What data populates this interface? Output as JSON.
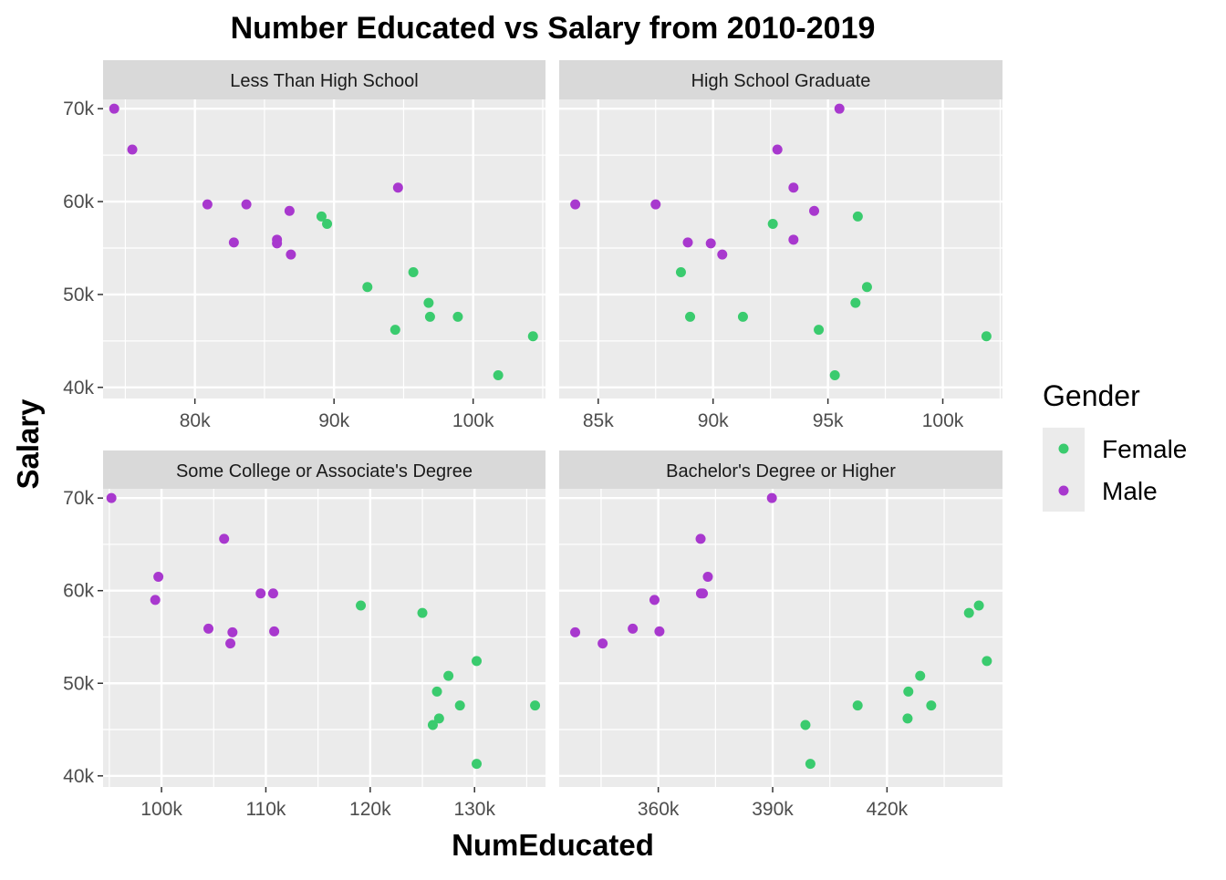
{
  "chart_data": {
    "type": "scatter",
    "title": "Number Educated vs Salary from 2010-2019",
    "xlabel": "NumEducated",
    "ylabel": "Salary",
    "grid": true,
    "legend": {
      "title": "Gender",
      "position": "right",
      "entries": [
        {
          "name": "Female",
          "color": "#3ACB6E"
        },
        {
          "name": "Male",
          "color": "#A838CE"
        }
      ]
    },
    "y_ticks": [
      {
        "value": 40000,
        "label": "40k"
      },
      {
        "value": 50000,
        "label": "50k"
      },
      {
        "value": 60000,
        "label": "60k"
      },
      {
        "value": 70000,
        "label": "70k"
      }
    ],
    "ylim": [
      38800,
      71000
    ],
    "panels": [
      {
        "strip": "Less Than High School",
        "xlim": [
          73400,
          105200
        ],
        "x_ticks": [
          {
            "value": 80000,
            "label": "80k"
          },
          {
            "value": 90000,
            "label": "90k"
          },
          {
            "value": 100000,
            "label": "100k"
          }
        ],
        "series": [
          {
            "name": "Female",
            "points": [
              [
                89100,
                58400
              ],
              [
                89500,
                57600
              ],
              [
                92400,
                50800
              ],
              [
                95700,
                52400
              ],
              [
                96800,
                49100
              ],
              [
                96900,
                47600
              ],
              [
                94400,
                46200
              ],
              [
                98900,
                47600
              ],
              [
                101800,
                41300
              ],
              [
                104300,
                45500
              ]
            ]
          },
          {
            "name": "Male",
            "points": [
              [
                74200,
                70000
              ],
              [
                75500,
                65600
              ],
              [
                80900,
                59700
              ],
              [
                82800,
                55600
              ],
              [
                83700,
                59700
              ],
              [
                85900,
                55900
              ],
              [
                85900,
                55500
              ],
              [
                86800,
                59000
              ],
              [
                86900,
                54300
              ],
              [
                94600,
                61500
              ]
            ]
          }
        ]
      },
      {
        "strip": "High School Graduate",
        "xlim": [
          83300,
          102600
        ],
        "x_ticks": [
          {
            "value": 85000,
            "label": "85k"
          },
          {
            "value": 90000,
            "label": "90k"
          },
          {
            "value": 95000,
            "label": "95k"
          },
          {
            "value": 100000,
            "label": "100k"
          }
        ],
        "series": [
          {
            "name": "Female",
            "points": [
              [
                88600,
                52400
              ],
              [
                89000,
                47600
              ],
              [
                91300,
                47600
              ],
              [
                92600,
                57600
              ],
              [
                94600,
                46200
              ],
              [
                95300,
                41300
              ],
              [
                96200,
                49100
              ],
              [
                96300,
                58400
              ],
              [
                96700,
                50800
              ],
              [
                101900,
                45500
              ]
            ]
          },
          {
            "name": "Male",
            "points": [
              [
                84000,
                59700
              ],
              [
                87500,
                59700
              ],
              [
                88900,
                55600
              ],
              [
                89900,
                55500
              ],
              [
                90400,
                54300
              ],
              [
                92800,
                65600
              ],
              [
                93500,
                61500
              ],
              [
                93500,
                55900
              ],
              [
                94400,
                59000
              ],
              [
                95500,
                70000
              ]
            ]
          }
        ]
      },
      {
        "strip": "Some College or Associate's Degree",
        "xlim": [
          94400,
          136800
        ],
        "x_ticks": [
          {
            "value": 100000,
            "label": "100k"
          },
          {
            "value": 110000,
            "label": "110k"
          },
          {
            "value": 120000,
            "label": "120k"
          },
          {
            "value": 130000,
            "label": "130k"
          }
        ],
        "series": [
          {
            "name": "Female",
            "points": [
              [
                119100,
                58400
              ],
              [
                125000,
                57600
              ],
              [
                126000,
                45500
              ],
              [
                126600,
                46200
              ],
              [
                126400,
                49100
              ],
              [
                127500,
                50800
              ],
              [
                128600,
                47600
              ],
              [
                130200,
                52400
              ],
              [
                130200,
                41300
              ],
              [
                135800,
                47600
              ]
            ]
          },
          {
            "name": "Male",
            "points": [
              [
                95200,
                70000
              ],
              [
                99400,
                59000
              ],
              [
                99700,
                61500
              ],
              [
                104500,
                55900
              ],
              [
                106000,
                65600
              ],
              [
                106600,
                54300
              ],
              [
                106800,
                55500
              ],
              [
                109500,
                59700
              ],
              [
                110700,
                59700
              ],
              [
                110800,
                55600
              ]
            ]
          }
        ]
      },
      {
        "strip": "Bachelor's Degree or Higher",
        "xlim": [
          334000,
          450300
        ],
        "x_ticks": [
          {
            "value": 360000,
            "label": "360k"
          },
          {
            "value": 390000,
            "label": "390k"
          },
          {
            "value": 420000,
            "label": "420k"
          }
        ],
        "series": [
          {
            "name": "Female",
            "points": [
              [
                398600,
                45500
              ],
              [
                399900,
                41300
              ],
              [
                412300,
                47600
              ],
              [
                425600,
                49100
              ],
              [
                425400,
                46200
              ],
              [
                428700,
                50800
              ],
              [
                431600,
                47600
              ],
              [
                441500,
                57600
              ],
              [
                444100,
                58400
              ],
              [
                446200,
                52400
              ]
            ]
          },
          {
            "name": "Male",
            "points": [
              [
                338200,
                55500
              ],
              [
                345400,
                54300
              ],
              [
                353300,
                55900
              ],
              [
                359000,
                59000
              ],
              [
                360300,
                55600
              ],
              [
                371200,
                59700
              ],
              [
                371700,
                59700
              ],
              [
                371100,
                65600
              ],
              [
                373000,
                61500
              ],
              [
                389800,
                70000
              ]
            ]
          }
        ]
      }
    ]
  }
}
